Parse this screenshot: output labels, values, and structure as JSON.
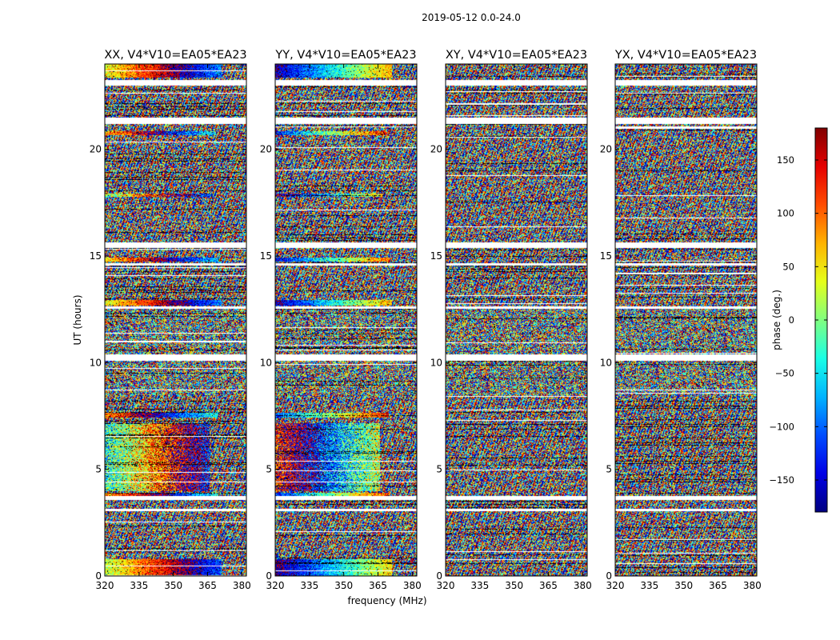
{
  "figure": {
    "suptitle": "2019-05-12 0.0-24.0",
    "xlabel": "frequency (MHz)",
    "ylabel": "UT (hours)",
    "colorbar_label": "phase (deg.)"
  },
  "chart_data": {
    "type": "heatmap",
    "title": "2019-05-12 0.0-24.0",
    "xlabel": "frequency (MHz)",
    "ylabel": "UT (hours)",
    "xlim": [
      320,
      382
    ],
    "ylim": [
      0,
      24
    ],
    "xticks": [
      320,
      335,
      350,
      365,
      380
    ],
    "yticks": [
      0,
      5,
      10,
      15,
      20
    ],
    "panels": [
      {
        "title": "XX, V4*V10=EA05*EA23",
        "xtick_labels": [
          "320",
          "335",
          "350",
          "365",
          "380"
        ],
        "ytick_labels": [
          "0",
          "5",
          "10",
          "15",
          "20"
        ]
      },
      {
        "title": "YY, V4*V10=EA05*EA23",
        "xtick_labels": [
          "320",
          "335",
          "350",
          "365",
          "380"
        ],
        "ytick_labels": [
          "0",
          "5",
          "10",
          "15",
          "20"
        ]
      },
      {
        "title": "XY, V4*V10=EA05*EA23",
        "xtick_labels": [
          "320",
          "335",
          "350",
          "365",
          "380"
        ],
        "ytick_labels": [
          "0",
          "5",
          "10",
          "15",
          "20"
        ]
      },
      {
        "title": "YX, V4*V10=EA05*EA23",
        "xtick_labels": [
          "320",
          "335",
          "350",
          "365",
          "380"
        ],
        "ytick_labels": [
          "0",
          "5",
          "10",
          "15",
          "20"
        ]
      }
    ],
    "colorbar": {
      "label": "phase (deg.)",
      "range": [
        -180,
        180
      ],
      "ticks": [
        150,
        100,
        50,
        0,
        -50,
        -100,
        -150
      ],
      "tick_labels": [
        "150",
        "100",
        "50",
        "0",
        "−50",
        "−100",
        "−150"
      ],
      "colormap": "jet"
    },
    "gaps_hours": [
      [
        23.0,
        23.25
      ],
      [
        21.2,
        21.5
      ],
      [
        15.4,
        15.65
      ],
      [
        14.55,
        14.7
      ],
      [
        12.55,
        12.65
      ],
      [
        10.1,
        10.4
      ],
      [
        3.6,
        3.75
      ],
      [
        3.05,
        3.15
      ]
    ]
  },
  "colors": {
    "jet_dark_blue": "#00007f",
    "jet_blue": "#0000ff",
    "jet_cyan": "#00ffff",
    "jet_yellow": "#ffff00",
    "jet_red": "#ff0000",
    "jet_dark_red": "#7f0000"
  }
}
